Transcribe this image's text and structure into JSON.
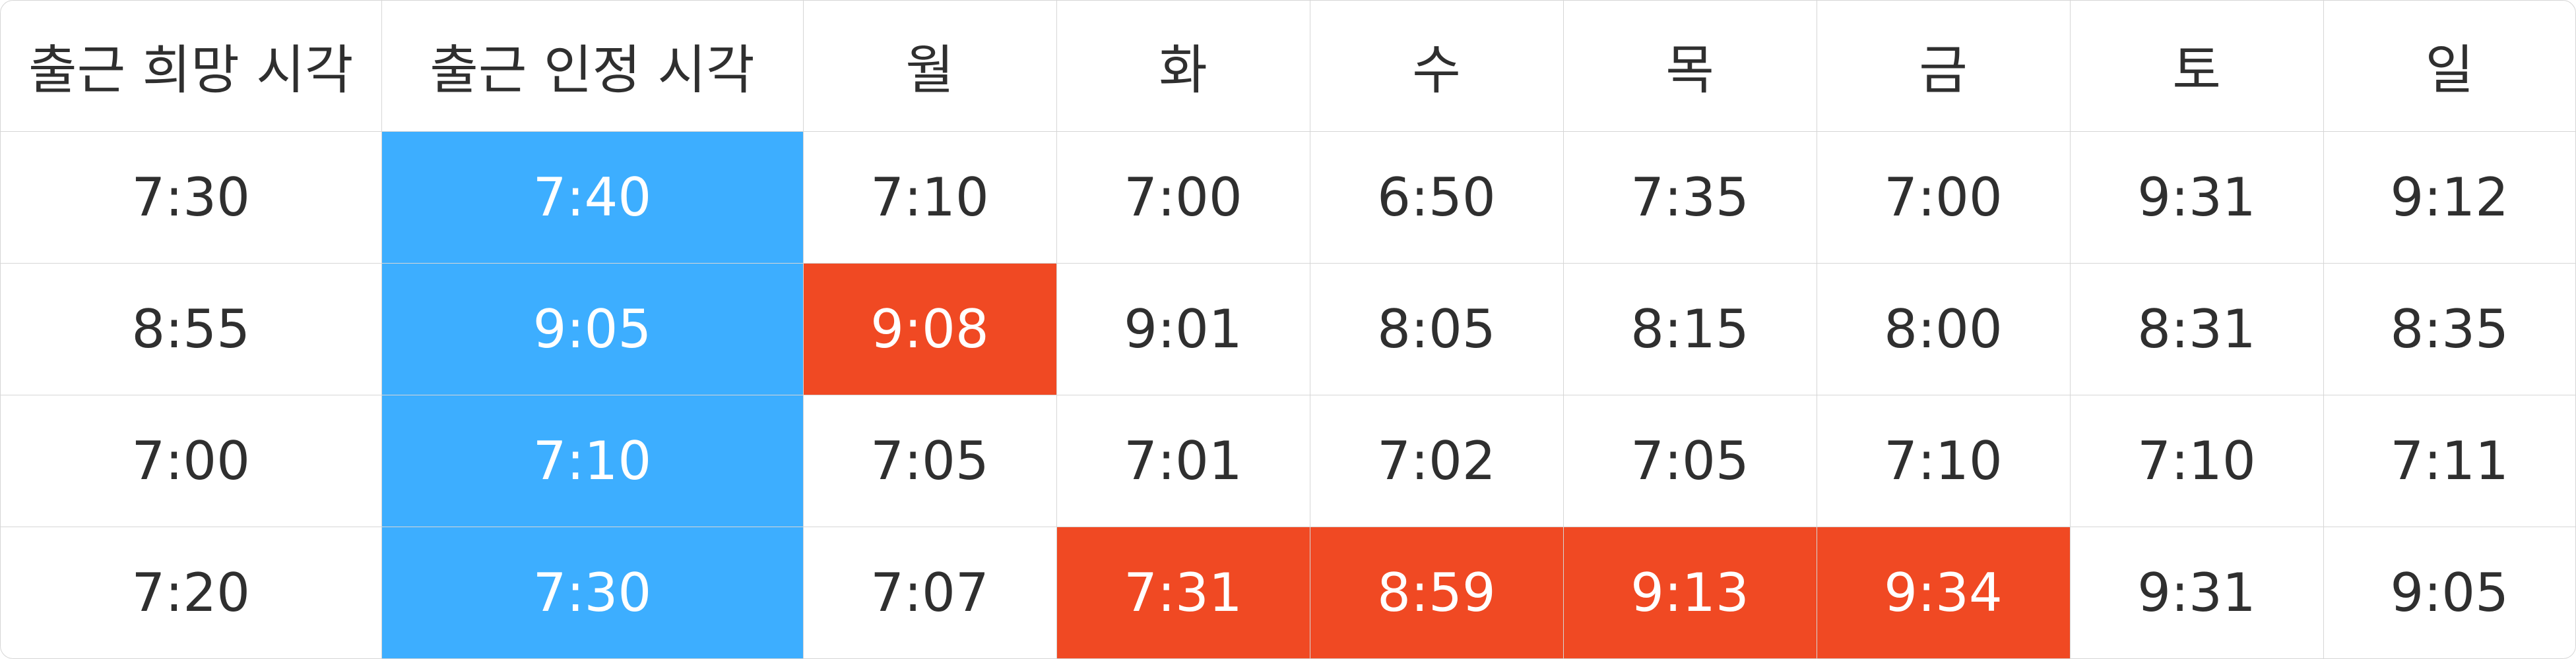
{
  "headers": [
    "출근 희망 시각",
    "출근 인정 시각",
    "월",
    "화",
    "수",
    "목",
    "금",
    "토",
    "일"
  ],
  "rows": [
    {
      "desired": "7:30",
      "certified": "7:40",
      "days": [
        "7:10",
        "7:00",
        "6:50",
        "7:35",
        "7:00",
        "9:31",
        "9:12"
      ]
    },
    {
      "desired": "8:55",
      "certified": "9:05",
      "days": [
        "9:08",
        "9:01",
        "8:05",
        "8:15",
        "8:00",
        "8:31",
        "8:35"
      ]
    },
    {
      "desired": "7:00",
      "certified": "7:10",
      "days": [
        "7:05",
        "7:01",
        "7:02",
        "7:05",
        "7:10",
        "7:10",
        "7:11"
      ]
    },
    {
      "desired": "7:20",
      "certified": "7:30",
      "days": [
        "7:07",
        "7:31",
        "8:59",
        "9:13",
        "9:34",
        "9:31",
        "9:05"
      ]
    }
  ],
  "colors": {
    "certified_column": "#3daeff",
    "late_cell": "#f04923"
  }
}
